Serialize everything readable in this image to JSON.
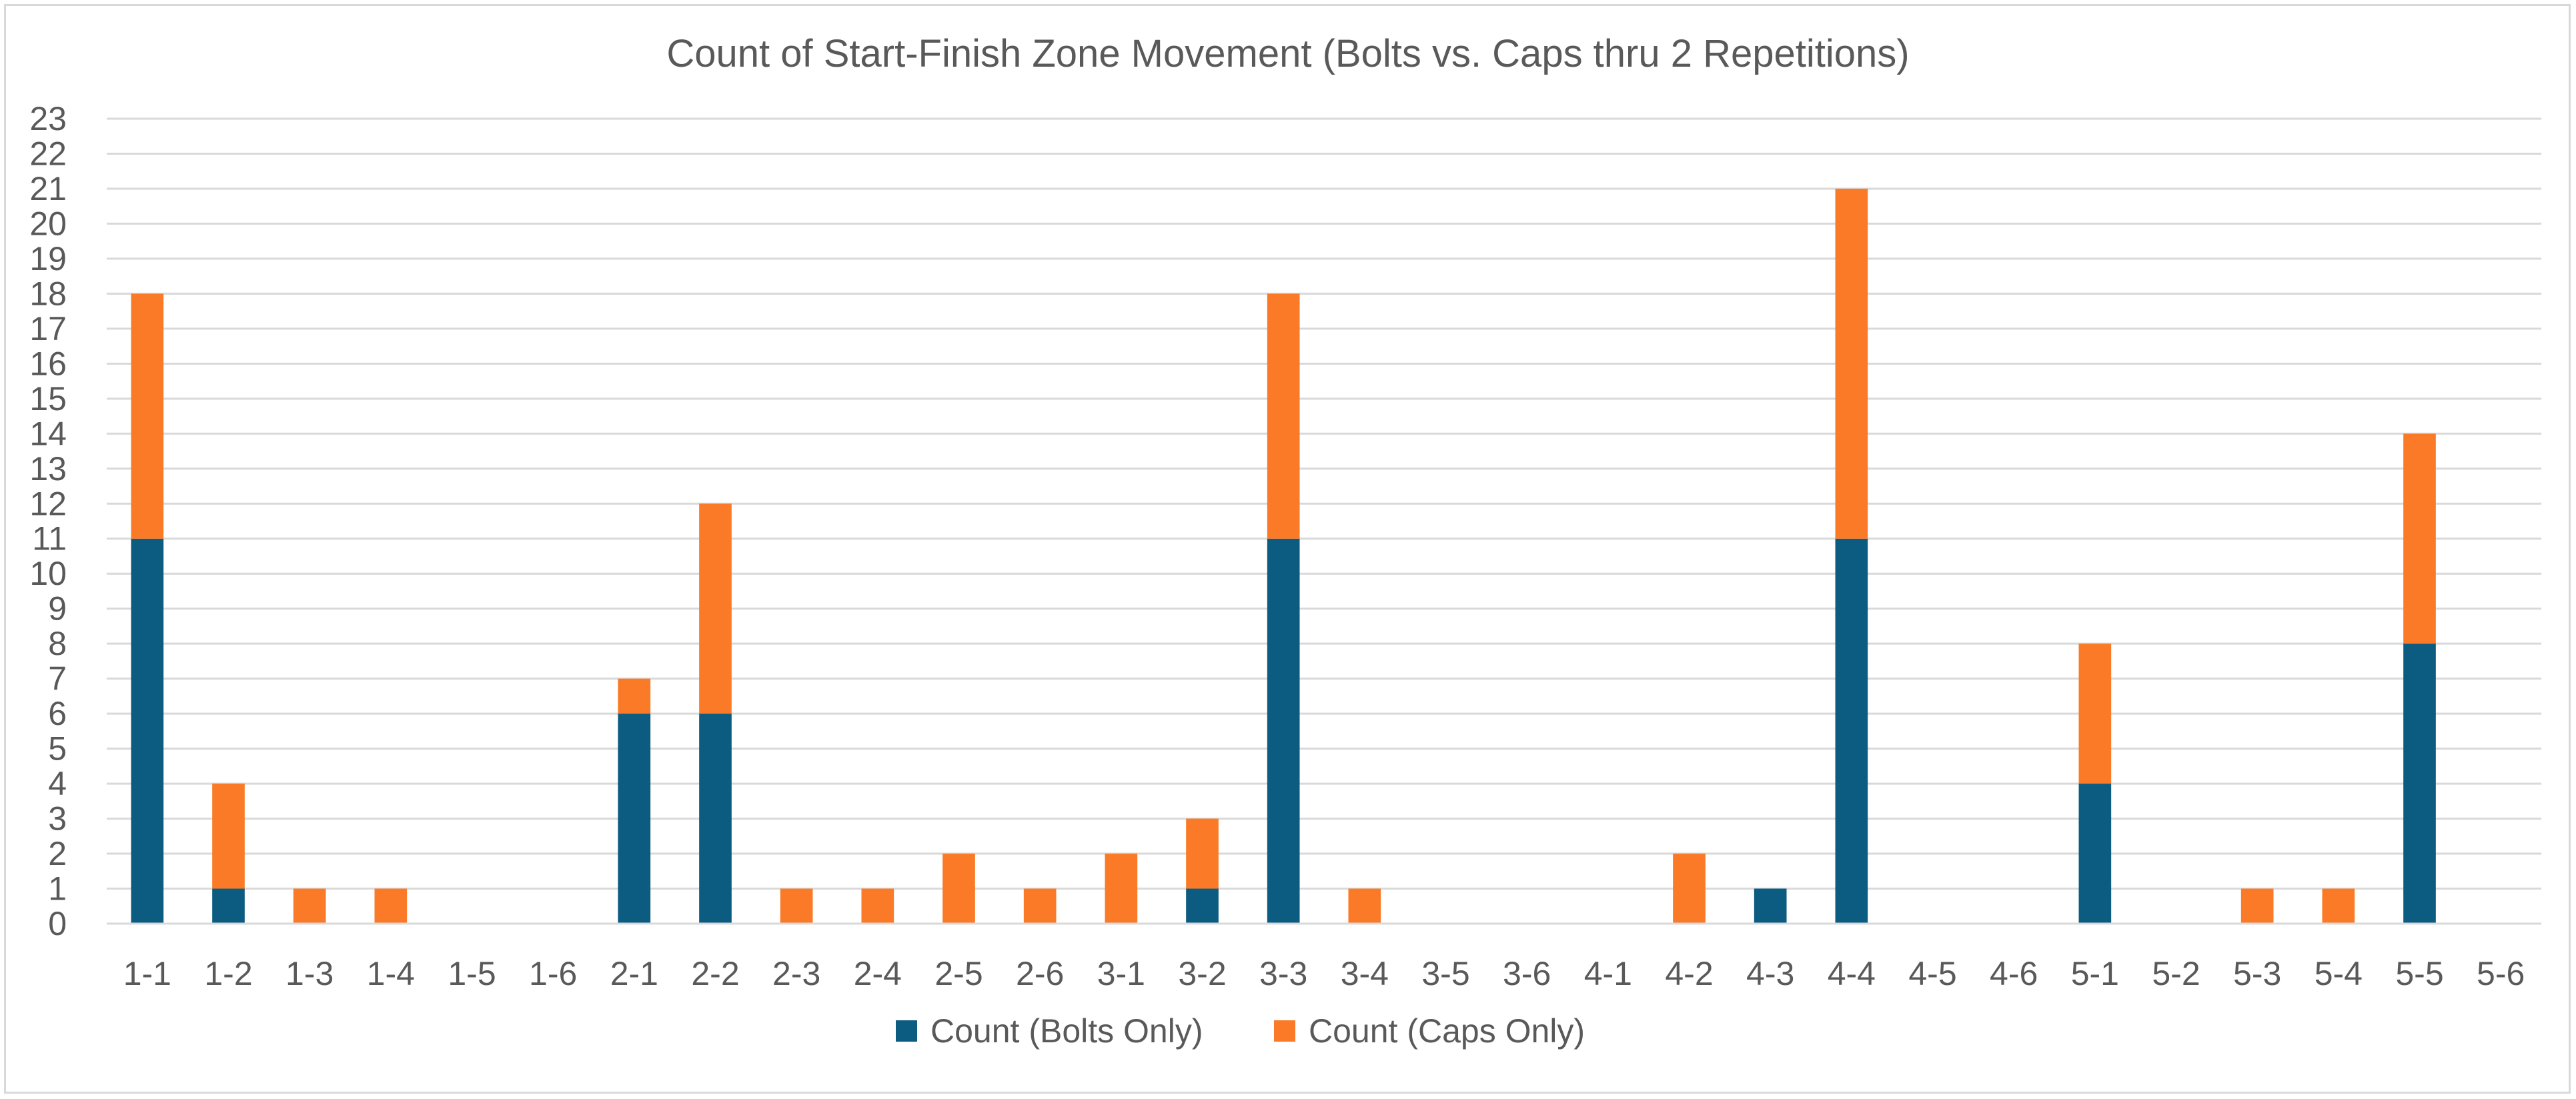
{
  "chart_data": {
    "type": "bar",
    "stacked": true,
    "title": "Count of Start-Finish Zone Movement (Bolts vs. Caps thru 2 Repetitions)",
    "xlabel": "",
    "ylabel": "",
    "ylim": [
      0,
      23
    ],
    "yticks": [
      "0",
      "1",
      "2",
      "3",
      "4",
      "5",
      "6",
      "7",
      "8",
      "9",
      "10",
      "11",
      "12",
      "13",
      "14",
      "15",
      "16",
      "17",
      "18",
      "19",
      "20",
      "21",
      "22",
      "23"
    ],
    "grid": true,
    "legend_position": "bottom",
    "categories": [
      "1-1",
      "1-2",
      "1-3",
      "1-4",
      "1-5",
      "1-6",
      "2-1",
      "2-2",
      "2-3",
      "2-4",
      "2-5",
      "2-6",
      "3-1",
      "3-2",
      "3-3",
      "3-4",
      "3-5",
      "3-6",
      "4-1",
      "4-2",
      "4-3",
      "4-4",
      "4-5",
      "4-6",
      "5-1",
      "5-2",
      "5-3",
      "5-4",
      "5-5",
      "5-6"
    ],
    "series": [
      {
        "name": "Count (Bolts Only)",
        "color": "#0b5c80",
        "values": [
          11,
          1,
          0,
          0,
          0,
          0,
          6,
          6,
          0,
          0,
          0,
          0,
          0,
          1,
          11,
          0,
          0,
          0,
          0,
          0,
          1,
          11,
          0,
          0,
          4,
          0,
          0,
          0,
          8,
          0
        ]
      },
      {
        "name": "Count (Caps Only)",
        "color": "#fa7a27",
        "values": [
          7,
          3,
          1,
          1,
          0,
          0,
          1,
          6,
          1,
          1,
          2,
          1,
          2,
          2,
          7,
          1,
          0,
          0,
          0,
          2,
          0,
          10,
          0,
          0,
          4,
          0,
          1,
          1,
          6,
          0
        ]
      }
    ]
  }
}
